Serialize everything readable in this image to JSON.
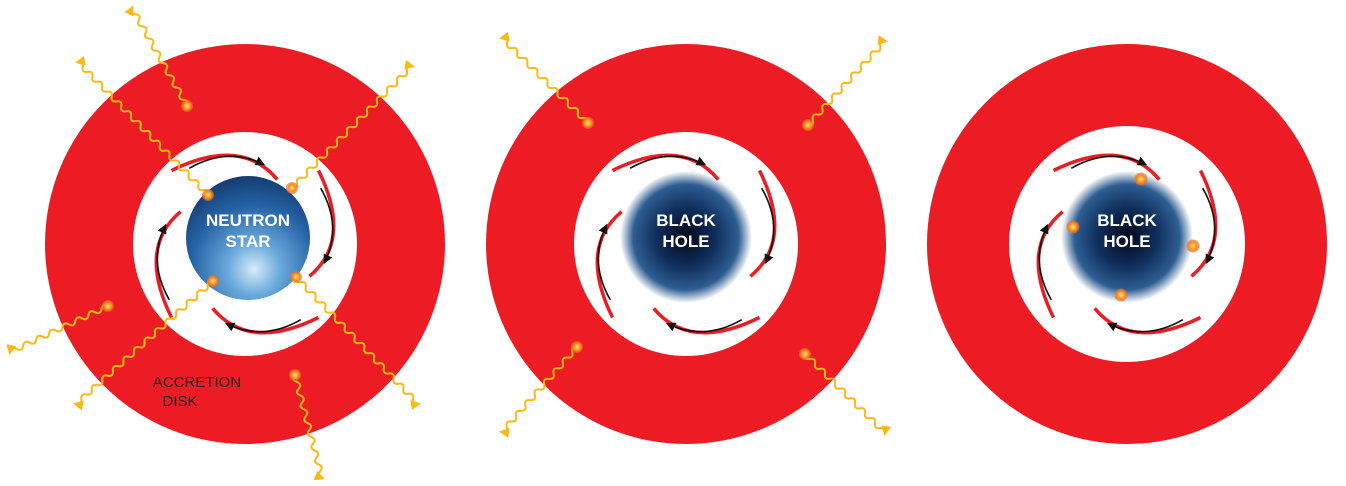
{
  "colors": {
    "disk": "#ed1c24",
    "flow_arc": "#ed1c24",
    "flow_arrow": "#111111",
    "photon": "#fdb913",
    "hotspot": "#f7941d"
  },
  "panels": [
    {
      "id": "neutron-star",
      "central_object": "neutron-star",
      "object_label_line1": "NEUTRON",
      "object_label_line2": "STAR",
      "disk_label_line1": "ACCRETION",
      "disk_label_line2": "DISK"
    },
    {
      "id": "black-hole-1",
      "central_object": "black-hole",
      "object_label_line1": "BLACK",
      "object_label_line2": "HOLE"
    },
    {
      "id": "black-hole-2",
      "central_object": "black-hole",
      "object_label_line1": "BLACK",
      "object_label_line2": "HOLE"
    }
  ],
  "icons": {
    "photon": "wavy-photon-arrow-icon",
    "hotspot": "hotspot-dot-icon",
    "flow": "curved-flow-arrow-icon"
  }
}
